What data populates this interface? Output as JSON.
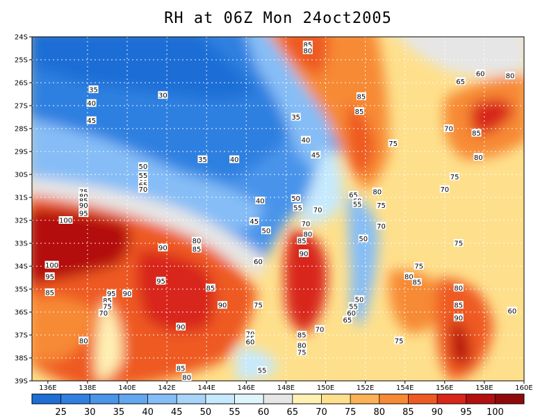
{
  "title": "RH at 06Z Mon 24oct2005",
  "x_ticks": [
    "136E",
    "138E",
    "140E",
    "142E",
    "144E",
    "146E",
    "148E",
    "150E",
    "152E",
    "154E",
    "156E",
    "158E",
    "160E"
  ],
  "y_ticks": [
    "24S",
    "25S",
    "26S",
    "27S",
    "28S",
    "29S",
    "30S",
    "31S",
    "32S",
    "33S",
    "34S",
    "35S",
    "36S",
    "37S",
    "38S",
    "39S"
  ],
  "colorbar": {
    "labels": [
      "25",
      "30",
      "35",
      "40",
      "45",
      "50",
      "55",
      "60",
      "65",
      "70",
      "75",
      "80",
      "85",
      "90",
      "95",
      "100"
    ],
    "colors": [
      "#1e6ed6",
      "#2f80e0",
      "#4a94ea",
      "#64a7f0",
      "#86bdf6",
      "#a8d4fa",
      "#c6e9fd",
      "#e0f5fb",
      "#e6e6e6",
      "#fff0b4",
      "#fee08c",
      "#fdb256",
      "#f78a34",
      "#ee5a24",
      "#d8261a",
      "#b40f10",
      "#900a0a"
    ]
  },
  "contour_labels": [
    {
      "text": "85",
      "lon": 149.1,
      "lat": -24.35
    },
    {
      "text": "80",
      "lon": 149.1,
      "lat": -24.6
    },
    {
      "text": "60",
      "lon": 157.8,
      "lat": -25.6
    },
    {
      "text": "80",
      "lon": 159.3,
      "lat": -25.7
    },
    {
      "text": "65",
      "lon": 156.8,
      "lat": -25.95
    },
    {
      "text": "85",
      "lon": 151.8,
      "lat": -26.6
    },
    {
      "text": "35",
      "lon": 138.3,
      "lat": -26.3
    },
    {
      "text": "30",
      "lon": 141.8,
      "lat": -26.55
    },
    {
      "text": "40",
      "lon": 138.2,
      "lat": -26.9
    },
    {
      "text": "85",
      "lon": 151.7,
      "lat": -27.25
    },
    {
      "text": "35",
      "lon": 148.5,
      "lat": -27.5
    },
    {
      "text": "45",
      "lon": 138.2,
      "lat": -27.65
    },
    {
      "text": "70",
      "lon": 156.2,
      "lat": -28.0
    },
    {
      "text": "85",
      "lon": 157.6,
      "lat": -28.2
    },
    {
      "text": "40",
      "lon": 149.0,
      "lat": -28.5
    },
    {
      "text": "75",
      "lon": 153.4,
      "lat": -28.65
    },
    {
      "text": "45",
      "lon": 149.5,
      "lat": -29.15
    },
    {
      "text": "80",
      "lon": 157.7,
      "lat": -29.25
    },
    {
      "text": "35",
      "lon": 143.8,
      "lat": -29.35
    },
    {
      "text": "40",
      "lon": 145.4,
      "lat": -29.35
    },
    {
      "text": "50",
      "lon": 140.8,
      "lat": -29.65
    },
    {
      "text": "75",
      "lon": 156.5,
      "lat": -30.1
    },
    {
      "text": "55",
      "lon": 140.8,
      "lat": -30.05
    },
    {
      "text": "60",
      "lon": 140.8,
      "lat": -30.35
    },
    {
      "text": "65",
      "lon": 140.8,
      "lat": -30.45
    },
    {
      "text": "70",
      "lon": 140.8,
      "lat": -30.65
    },
    {
      "text": "75",
      "lon": 137.8,
      "lat": -30.75
    },
    {
      "text": "80",
      "lon": 137.8,
      "lat": -30.95
    },
    {
      "text": "70",
      "lon": 156.0,
      "lat": -30.65
    },
    {
      "text": "80",
      "lon": 152.6,
      "lat": -30.75
    },
    {
      "text": "65",
      "lon": 151.4,
      "lat": -30.9
    },
    {
      "text": "50",
      "lon": 148.5,
      "lat": -31.05
    },
    {
      "text": "40",
      "lon": 146.7,
      "lat": -31.15
    },
    {
      "text": "85",
      "lon": 137.8,
      "lat": -31.15
    },
    {
      "text": "60",
      "lon": 151.6,
      "lat": -31.15
    },
    {
      "text": "55",
      "lon": 151.6,
      "lat": -31.3
    },
    {
      "text": "90",
      "lon": 137.8,
      "lat": -31.35
    },
    {
      "text": "55",
      "lon": 148.6,
      "lat": -31.45
    },
    {
      "text": "75",
      "lon": 152.8,
      "lat": -31.35
    },
    {
      "text": "70",
      "lon": 149.6,
      "lat": -31.55
    },
    {
      "text": "95",
      "lon": 137.8,
      "lat": -31.7
    },
    {
      "text": "45",
      "lon": 146.4,
      "lat": -32.05
    },
    {
      "text": "100",
      "lon": 136.9,
      "lat": -32.0
    },
    {
      "text": "70",
      "lon": 149.0,
      "lat": -32.15
    },
    {
      "text": "70",
      "lon": 152.8,
      "lat": -32.25
    },
    {
      "text": "50",
      "lon": 147.0,
      "lat": -32.45
    },
    {
      "text": "80",
      "lon": 149.1,
      "lat": -32.6
    },
    {
      "text": "80",
      "lon": 143.5,
      "lat": -32.9
    },
    {
      "text": "50",
      "lon": 151.9,
      "lat": -32.8
    },
    {
      "text": "85",
      "lon": 148.8,
      "lat": -32.9
    },
    {
      "text": "90",
      "lon": 141.8,
      "lat": -33.2
    },
    {
      "text": "85",
      "lon": 143.5,
      "lat": -33.25
    },
    {
      "text": "75",
      "lon": 156.7,
      "lat": -33.0
    },
    {
      "text": "90",
      "lon": 148.9,
      "lat": -33.45
    },
    {
      "text": "60",
      "lon": 146.6,
      "lat": -33.8
    },
    {
      "text": "75",
      "lon": 154.7,
      "lat": -34.0
    },
    {
      "text": "100",
      "lon": 136.2,
      "lat": -33.95
    },
    {
      "text": "95",
      "lon": 136.1,
      "lat": -34.45
    },
    {
      "text": "80",
      "lon": 154.2,
      "lat": -34.45
    },
    {
      "text": "85",
      "lon": 154.6,
      "lat": -34.7
    },
    {
      "text": "95",
      "lon": 141.7,
      "lat": -34.65
    },
    {
      "text": "85",
      "lon": 144.2,
      "lat": -34.95
    },
    {
      "text": "80",
      "lon": 156.7,
      "lat": -34.95
    },
    {
      "text": "85",
      "lon": 136.1,
      "lat": -35.15
    },
    {
      "text": "95",
      "lon": 139.2,
      "lat": -35.2
    },
    {
      "text": "90",
      "lon": 140.0,
      "lat": -35.2
    },
    {
      "text": "85",
      "lon": 139.0,
      "lat": -35.5
    },
    {
      "text": "50",
      "lon": 151.7,
      "lat": -35.45
    },
    {
      "text": "75",
      "lon": 139.0,
      "lat": -35.75
    },
    {
      "text": "90",
      "lon": 144.8,
      "lat": -35.7
    },
    {
      "text": "85",
      "lon": 156.7,
      "lat": -35.7
    },
    {
      "text": "75",
      "lon": 146.6,
      "lat": -35.7
    },
    {
      "text": "55",
      "lon": 151.4,
      "lat": -35.75
    },
    {
      "text": "70",
      "lon": 138.8,
      "lat": -36.05
    },
    {
      "text": "60",
      "lon": 151.3,
      "lat": -36.05
    },
    {
      "text": "60",
      "lon": 159.4,
      "lat": -35.95
    },
    {
      "text": "90",
      "lon": 156.7,
      "lat": -36.25
    },
    {
      "text": "65",
      "lon": 151.1,
      "lat": -36.35
    },
    {
      "text": "90",
      "lon": 142.7,
      "lat": -36.65
    },
    {
      "text": "70",
      "lon": 149.7,
      "lat": -36.75
    },
    {
      "text": "70",
      "lon": 146.2,
      "lat": -36.95
    },
    {
      "text": "85",
      "lon": 148.8,
      "lat": -37.0
    },
    {
      "text": "65",
      "lon": 146.2,
      "lat": -37.15
    },
    {
      "text": "60",
      "lon": 146.2,
      "lat": -37.3
    },
    {
      "text": "80",
      "lon": 137.8,
      "lat": -37.25
    },
    {
      "text": "75",
      "lon": 153.7,
      "lat": -37.25
    },
    {
      "text": "80",
      "lon": 148.8,
      "lat": -37.45
    },
    {
      "text": "75",
      "lon": 148.8,
      "lat": -37.75
    },
    {
      "text": "85",
      "lon": 142.7,
      "lat": -38.45
    },
    {
      "text": "55",
      "lon": 146.8,
      "lat": -38.55
    },
    {
      "text": "80",
      "lon": 143.0,
      "lat": -38.85
    }
  ]
}
